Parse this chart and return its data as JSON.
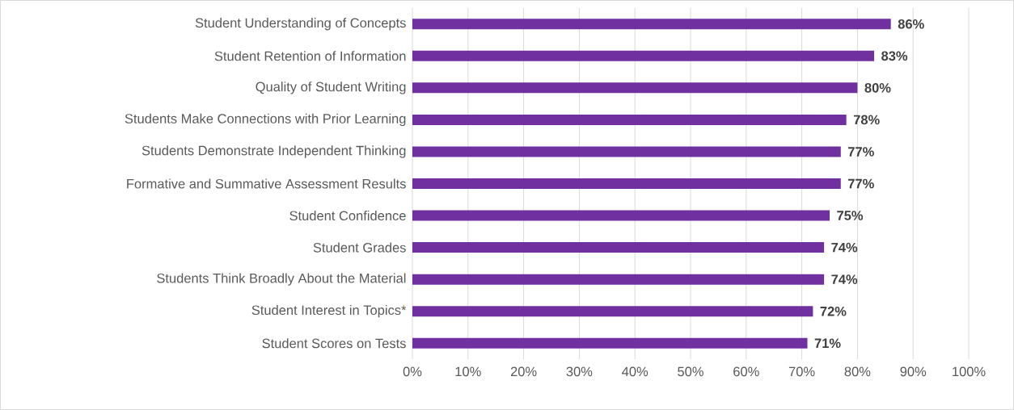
{
  "chart_data": {
    "type": "bar",
    "orientation": "horizontal",
    "categories": [
      "Student Understanding of Concepts",
      "Student Retention of Information",
      "Quality of Student Writing",
      "Students Make Connections with Prior Learning",
      "Students Demonstrate Independent Thinking",
      "Formative and Summative Assessment Results",
      "Student Confidence",
      "Student Grades",
      "Students Think Broadly About the Material",
      "Student Interest in Topics*",
      "Student Scores on Tests"
    ],
    "values": [
      86,
      83,
      80,
      78,
      77,
      77,
      75,
      74,
      74,
      72,
      71
    ],
    "value_labels": [
      "86%",
      "83%",
      "80%",
      "78%",
      "77%",
      "77%",
      "75%",
      "74%",
      "74%",
      "72%",
      "71%"
    ],
    "color": "#7030a0",
    "xlim": [
      0,
      100
    ],
    "xticks": [
      {
        "value": 0,
        "label": "0%"
      },
      {
        "value": 10,
        "label": "10%"
      },
      {
        "value": 20,
        "label": "20%"
      },
      {
        "value": 30,
        "label": "30%"
      },
      {
        "value": 40,
        "label": "40%"
      },
      {
        "value": 50,
        "label": "50%"
      },
      {
        "value": 60,
        "label": "60%"
      },
      {
        "value": 70,
        "label": "70%"
      },
      {
        "value": 80,
        "label": "80%"
      },
      {
        "value": 90,
        "label": "90%"
      },
      {
        "value": 100,
        "label": "100%"
      }
    ],
    "grid": "x"
  }
}
